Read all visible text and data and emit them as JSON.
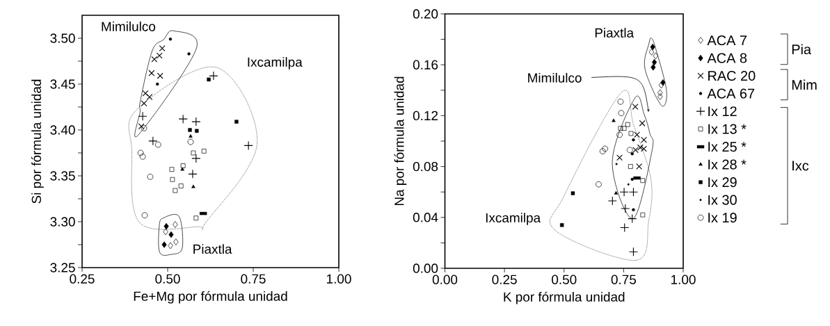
{
  "chart_data": [
    {
      "type": "scatter",
      "xlabel": "Fe+Mg por fórmula unidad",
      "ylabel": "Si por fórmula unidad",
      "xlim": [
        0.25,
        1.0
      ],
      "ylim": [
        3.25,
        3.525
      ],
      "xticks": [
        {
          "value": 0.25,
          "label": "0.25"
        },
        {
          "value": 0.5,
          "label": "0.50"
        },
        {
          "value": 0.75,
          "label": "0.75"
        },
        {
          "value": 1.0,
          "label": "1.00"
        }
      ],
      "yticks": [
        {
          "value": 3.25,
          "label": "3.25"
        },
        {
          "value": 3.275,
          "label": null
        },
        {
          "value": 3.3,
          "label": "3.30"
        },
        {
          "value": 3.325,
          "label": null
        },
        {
          "value": 3.35,
          "label": "3.35"
        },
        {
          "value": 3.375,
          "label": null
        },
        {
          "value": 3.4,
          "label": "3.40"
        },
        {
          "value": 3.425,
          "label": null
        },
        {
          "value": 3.45,
          "label": "3.45"
        },
        {
          "value": 3.475,
          "label": null
        },
        {
          "value": 3.5,
          "label": "3.50"
        }
      ],
      "annotations": [
        "Mimilulco",
        "Ixcamilpa",
        "Piaxtla"
      ],
      "series": [
        {
          "color": "#000000",
          "marker": "diamond",
          "x": [
            0.522,
            0.494,
            0.524,
            0.508
          ],
          "values": [
            3.297,
            3.289,
            3.278,
            3.274
          ]
        },
        {
          "color": "#000000",
          "marker": "diamond_filled",
          "x": [
            0.496,
            0.51,
            0.49
          ],
          "values": [
            3.295,
            3.286,
            3.275
          ]
        },
        {
          "color": "#000000",
          "marker": "cross",
          "x": [
            0.484,
            0.476,
            0.461,
            0.453,
            0.478,
            0.435,
            0.447,
            0.431,
            0.423
          ],
          "values": [
            3.489,
            3.481,
            3.477,
            3.462,
            3.459,
            3.44,
            3.436,
            3.429,
            3.404
          ]
        },
        {
          "color": "#000000",
          "marker": "circle_filled",
          "x": [
            0.508,
            0.562,
            0.47
          ],
          "values": [
            3.499,
            3.483,
            3.45
          ]
        },
        {
          "color": "#000000",
          "marker": "plus",
          "x": [
            0.427,
            0.634,
            0.545,
            0.583,
            0.457,
            0.736,
            0.583,
            0.573
          ],
          "values": [
            3.415,
            3.459,
            3.412,
            3.409,
            3.388,
            3.383,
            3.369,
            3.352
          ]
        },
        {
          "color": "#000000",
          "marker": "square",
          "x": [
            0.575,
            0.606,
            0.545,
            0.512,
            0.514,
            0.539,
            0.522,
            0.583
          ],
          "values": [
            3.375,
            3.377,
            3.361,
            3.357,
            3.346,
            3.339,
            3.334,
            3.304
          ]
        },
        {
          "color": "#000000",
          "marker": "square_dash",
          "x": [
            0.604
          ],
          "values": [
            3.309
          ]
        },
        {
          "color": "#000000",
          "marker": "triangle_filled",
          "x": [
            0.567,
            0.543,
            0.575
          ],
          "values": [
            3.393,
            3.357,
            3.338
          ]
        },
        {
          "color": "#000000",
          "marker": "square_filled",
          "x": [
            0.62,
            0.701,
            0.565,
            0.585
          ],
          "values": [
            3.455,
            3.409,
            3.4,
            3.399
          ]
        },
        {
          "color": "#000000",
          "marker": "circle",
          "x": [
            0.431,
            0.567,
            0.472,
            0.421,
            0.427,
            0.449,
            0.433
          ],
          "values": [
            3.402,
            3.387,
            3.384,
            3.375,
            3.371,
            3.349,
            3.307
          ]
        }
      ]
    },
    {
      "type": "scatter",
      "xlabel": "K por fórmula unidad",
      "ylabel": "Na por fórmula unidad",
      "xlim": [
        0.0,
        1.0
      ],
      "ylim": [
        0.0,
        0.2
      ],
      "legend": "right",
      "xticks": [
        {
          "value": 0.0,
          "label": "0.00"
        },
        {
          "value": 0.25,
          "label": "0.25"
        },
        {
          "value": 0.5,
          "label": "0.50"
        },
        {
          "value": 0.75,
          "label": "0.75"
        },
        {
          "value": 1.0,
          "label": "1.00"
        }
      ],
      "yticks": [
        {
          "value": 0.0,
          "label": "0.00"
        },
        {
          "value": 0.02,
          "label": null
        },
        {
          "value": 0.04,
          "label": "0.04"
        },
        {
          "value": 0.06,
          "label": null
        },
        {
          "value": 0.08,
          "label": "0.08"
        },
        {
          "value": 0.1,
          "label": null
        },
        {
          "value": 0.12,
          "label": "0.12"
        },
        {
          "value": 0.14,
          "label": null
        },
        {
          "value": 0.16,
          "label": "0.16"
        },
        {
          "value": 0.18,
          "label": null
        },
        {
          "value": 0.2,
          "label": "0.20"
        }
      ],
      "annotations": [
        "Piaxtla",
        "Mimilulco",
        "Ixcamilpa",
        "Pia",
        "Mim",
        "Ixc"
      ],
      "series": [
        {
          "name": "ACA 7",
          "color": "#000000",
          "marker": "diamond",
          "x": [
            0.867,
            0.884,
            0.908,
            0.903,
            0.903
          ],
          "values": [
            0.17,
            0.167,
            0.144,
            0.138,
            0.135
          ]
        },
        {
          "name": "ACA 8",
          "color": "#000000",
          "marker": "diamond_filled",
          "x": [
            0.872,
            0.879,
            0.874,
            0.915
          ],
          "values": [
            0.174,
            0.162,
            0.158,
            0.146
          ]
        },
        {
          "name": "RAC 20",
          "color": "#000000",
          "marker": "cross",
          "x": [
            0.799,
            0.828,
            0.835,
            0.806,
            0.82,
            0.835,
            0.8,
            0.733,
            0.815
          ],
          "values": [
            0.127,
            0.114,
            0.101,
            0.105,
            0.095,
            0.094,
            0.093,
            0.087,
            0.08
          ]
        },
        {
          "name": "ACA 67",
          "color": "#000000",
          "marker": "circle_filled",
          "x": [
            0.791,
            0.786,
            0.786,
            0.791
          ],
          "values": [
            0.101,
            0.09,
            0.07,
            0.046
          ]
        },
        {
          "name": "Ix 12",
          "color": "#000000",
          "marker": "plus",
          "x": [
            0.752,
            0.791,
            0.703,
            0.757,
            0.786,
            0.754,
            0.791
          ],
          "values": [
            0.06,
            0.06,
            0.053,
            0.047,
            0.039,
            0.032,
            0.013
          ]
        },
        {
          "name": "Ix 13 *",
          "color": "#000000",
          "marker": "square",
          "x": [
            0.737,
            0.752,
            0.767,
            0.781,
            0.779,
            0.83,
            0.83
          ],
          "values": [
            0.11,
            0.11,
            0.113,
            0.106,
            0.08,
            0.069,
            0.042
          ]
        },
        {
          "name": "Ix 25 *",
          "color": "#000000",
          "marker": "square_dash",
          "x": [
            0.806
          ],
          "values": [
            0.071
          ]
        },
        {
          "name": "Ix 28 *",
          "color": "#000000",
          "marker": "triangle_filled",
          "x": [
            0.708,
            0.718
          ],
          "values": [
            0.116,
            0.059
          ]
        },
        {
          "name": "Ix 29",
          "color": "#000000",
          "marker": "square_filled",
          "x": [
            0.537,
            0.491
          ],
          "values": [
            0.059,
            0.034
          ]
        },
        {
          "name": "Ix 30",
          "color": "#000000",
          "marker": "dot",
          "x": [
            0.77,
            0.72
          ],
          "values": [
            0.066,
            0.082
          ]
        },
        {
          "name": "Ix 19",
          "color": "#000000",
          "marker": "circle",
          "x": [
            0.737,
            0.74,
            0.733,
            0.662,
            0.672,
            0.776,
            0.645
          ],
          "values": [
            0.131,
            0.122,
            0.105,
            0.092,
            0.094,
            0.093,
            0.066
          ]
        }
      ]
    }
  ]
}
